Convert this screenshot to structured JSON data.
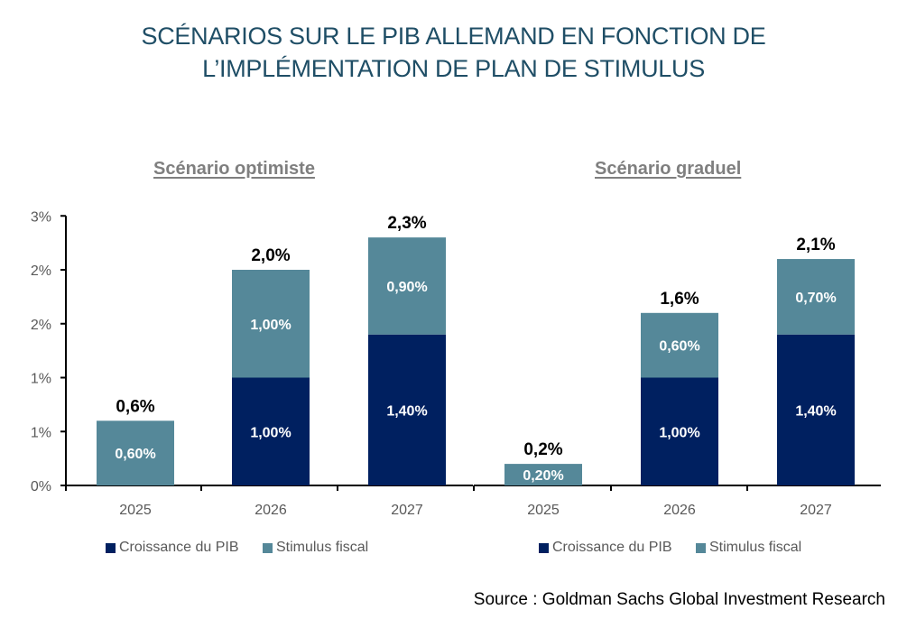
{
  "title_lines": [
    "SCÉNARIOS SUR LE PIB ALLEMAND EN FONCTION DE",
    "L’IMPLÉMENTATION DE PLAN DE STIMULUS"
  ],
  "source": "Source : Goldman Sachs Global Investment Research",
  "colors": {
    "croissance": "#002060",
    "stimulus": "#558899",
    "title": "#1f4e66"
  },
  "chart_data": [
    {
      "type": "bar",
      "stacked": true,
      "title": "Scénario optimiste",
      "categories": [
        "2025",
        "2026",
        "2027"
      ],
      "series": [
        {
          "name": "Croissance du PIB",
          "values": [
            0,
            1.0,
            1.4
          ],
          "labels": [
            "",
            "1,00%",
            "1,40%"
          ]
        },
        {
          "name": "Stimulus fiscal",
          "values": [
            0.6,
            1.0,
            0.9
          ],
          "labels": [
            "0,60%",
            "1,00%",
            "0,90%"
          ]
        }
      ],
      "totals": [
        "0,6%",
        "2,0%",
        "2,3%"
      ],
      "ylim": [
        0,
        2.5
      ],
      "yticks": [
        0,
        0.5,
        1.0,
        1.5,
        2.0,
        2.5
      ],
      "ytick_labels": [
        "0%",
        "1%",
        "1%",
        "2%",
        "2%",
        "3%"
      ],
      "show_y_axis": true,
      "legend": [
        "Croissance du PIB",
        "Stimulus fiscal"
      ],
      "legend_position": "bottom"
    },
    {
      "type": "bar",
      "stacked": true,
      "title": "Scénario graduel",
      "categories": [
        "2025",
        "2026",
        "2027"
      ],
      "series": [
        {
          "name": "Croissance du PIB",
          "values": [
            0,
            1.0,
            1.4
          ],
          "labels": [
            "",
            "1,00%",
            "1,40%"
          ]
        },
        {
          "name": "Stimulus fiscal",
          "values": [
            0.2,
            0.6,
            0.7
          ],
          "labels": [
            "0,20%",
            "0,60%",
            "0,70%"
          ]
        }
      ],
      "totals": [
        "0,2%",
        "1,6%",
        "2,1%"
      ],
      "ylim": [
        0,
        2.5
      ],
      "show_y_axis": false,
      "legend": [
        "Croissance du PIB",
        "Stimulus fiscal"
      ],
      "legend_position": "bottom"
    }
  ]
}
